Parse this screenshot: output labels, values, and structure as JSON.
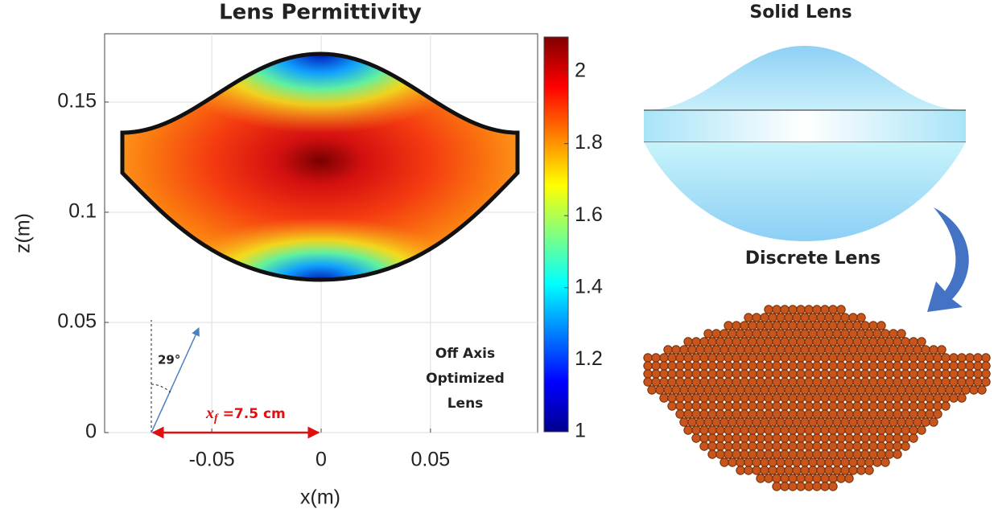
{
  "chart_data": {
    "type": "heatmap",
    "title": "Lens Permittivity",
    "x_label": "x(m)",
    "y_label": "z(m)",
    "xlim": [
      -0.099,
      0.099
    ],
    "ylim": [
      0,
      0.181
    ],
    "xticks": [
      -0.05,
      0,
      0.05
    ],
    "yticks": [
      0,
      0.05,
      0.1,
      0.15
    ],
    "grid": true,
    "colormap": "jet",
    "clim": [
      1,
      2.096
    ],
    "colorbar_ticks": [
      1,
      1.2,
      1.4,
      1.6,
      1.8,
      2
    ],
    "annotations": {
      "angle": "29°",
      "label": [
        "Off Axis",
        "Optimized",
        "Lens"
      ],
      "focal": {
        "symbol": "x",
        "subscript": "f",
        "text": "=7.5 cm"
      }
    }
  },
  "panels": {
    "solid": "Solid Lens",
    "discrete": "Discrete Lens"
  }
}
